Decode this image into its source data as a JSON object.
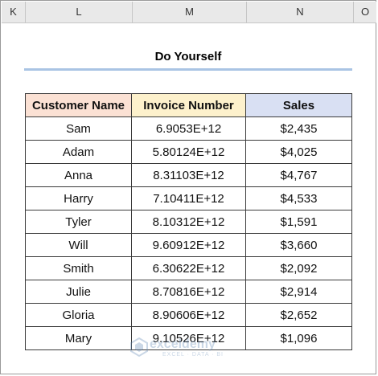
{
  "columns": [
    "K",
    "L",
    "M",
    "N",
    "O"
  ],
  "sheet": {
    "title": "Do Yourself"
  },
  "table": {
    "headers": [
      "Customer Name",
      "Invoice Number",
      "Sales"
    ],
    "rows": [
      [
        "Sam",
        "6.9053E+12",
        "$2,435"
      ],
      [
        "Adam",
        "5.80124E+12",
        "$4,025"
      ],
      [
        "Anna",
        "8.31103E+12",
        "$4,767"
      ],
      [
        "Harry",
        "7.10411E+12",
        "$4,533"
      ],
      [
        "Tyler",
        "8.10312E+12",
        "$1,591"
      ],
      [
        "Will",
        "9.60912E+12",
        "$3,660"
      ],
      [
        "Smith",
        "6.30622E+12",
        "$2,092"
      ],
      [
        "Julie",
        "8.70816E+12",
        "$2,914"
      ],
      [
        "Gloria",
        "8.90606E+12",
        "$2,652"
      ],
      [
        "Mary",
        "9.10526E+12",
        "$1,096"
      ]
    ]
  },
  "watermark": {
    "name": "exceldemy",
    "tagline": "EXCEL · DATA · BI"
  },
  "colors": {
    "header_name": "#fbe1d4",
    "header_invoice": "#fdf1cc",
    "header_sales": "#d9e0f3",
    "title_underline": "#a9c4e4"
  }
}
